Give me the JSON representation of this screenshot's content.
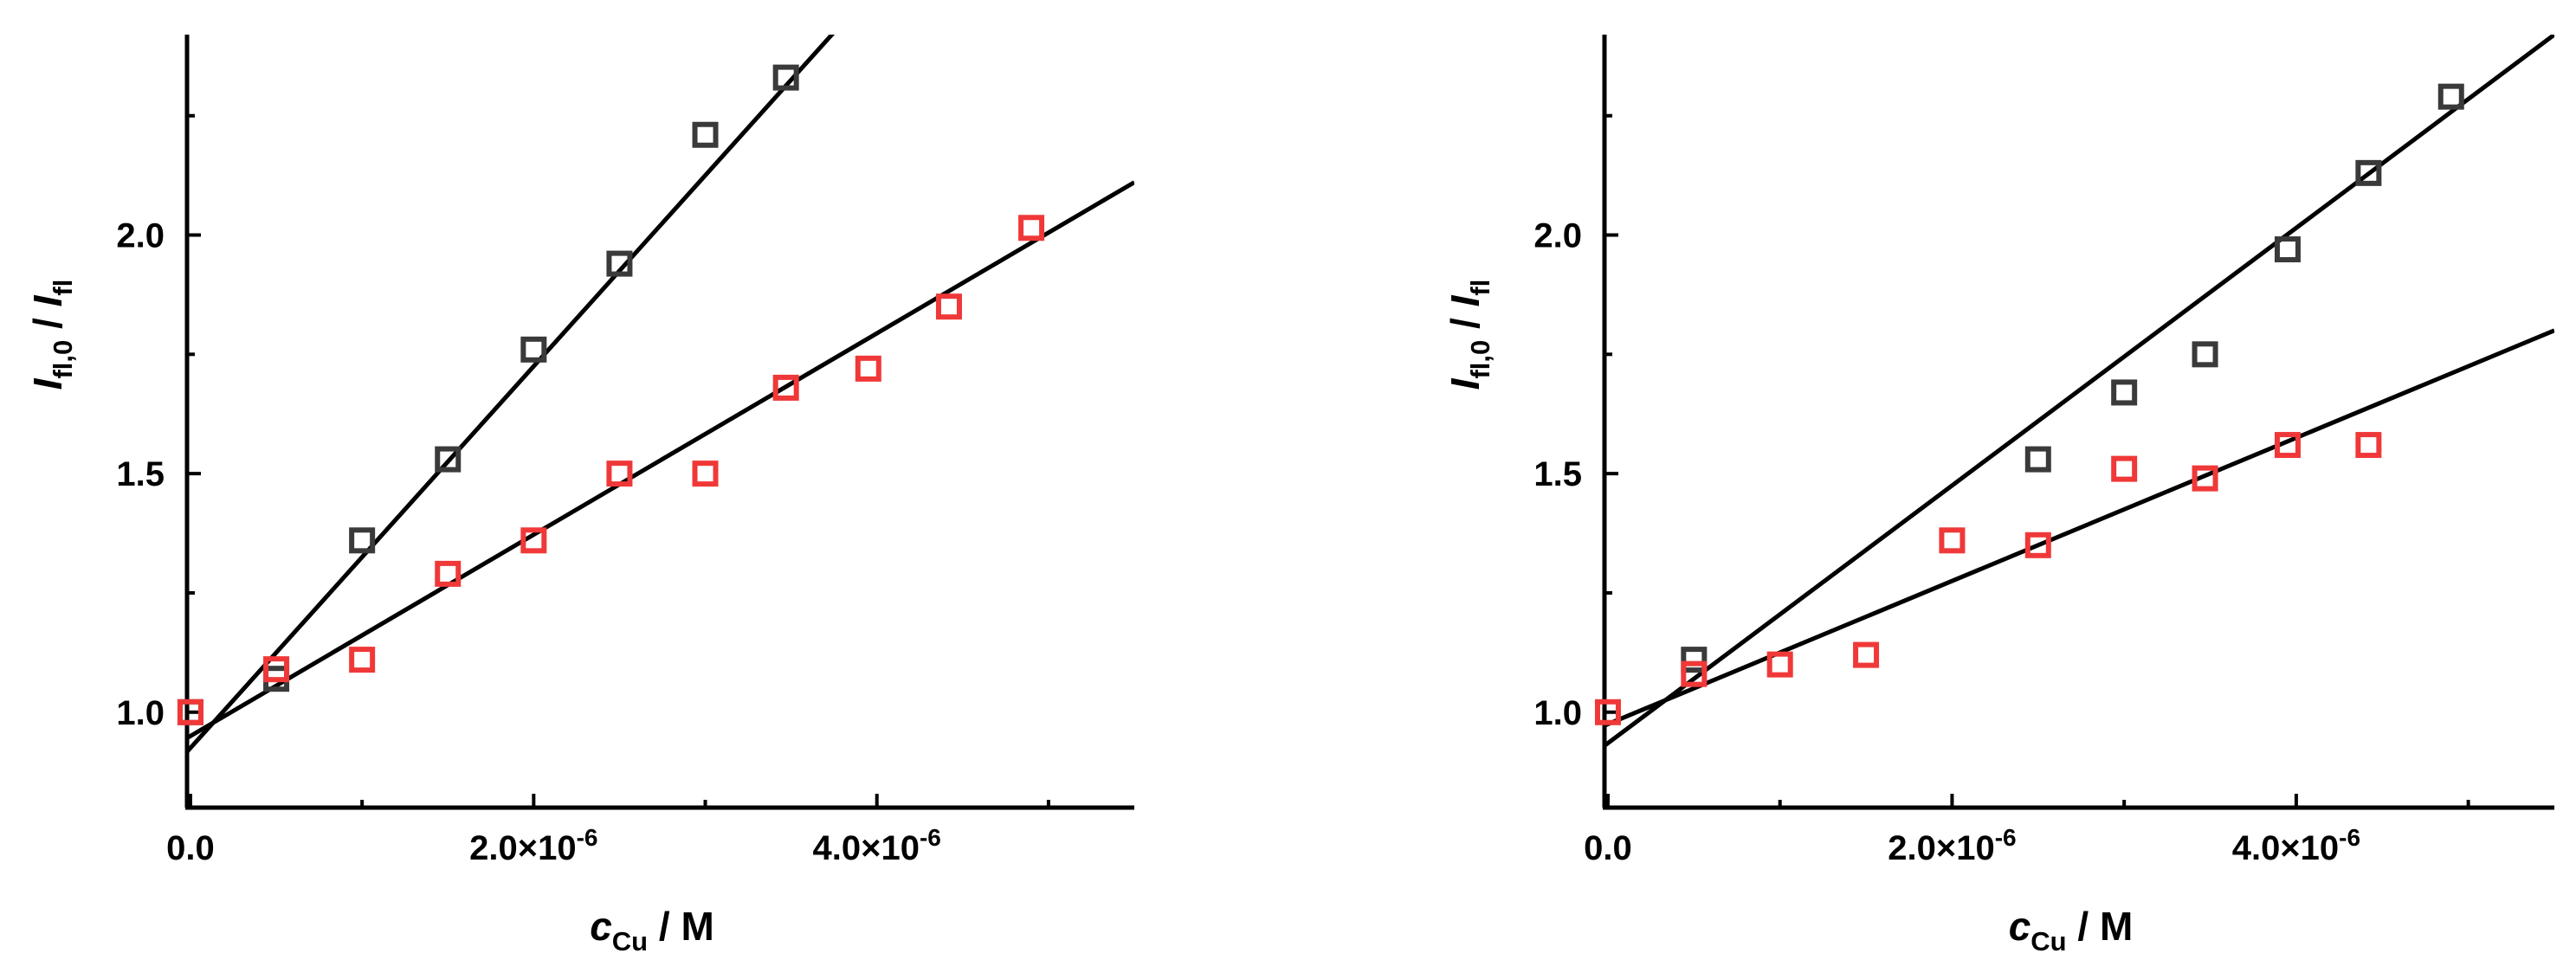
{
  "colors": {
    "black_series": "#3a3a3a",
    "red_series": "#f03838",
    "axis": "#000000",
    "fit": "#000000"
  },
  "chart_data": [
    {
      "type": "scatter",
      "panel": "left",
      "xlabel": {
        "main": "c",
        "sub": "Cu",
        "unit": " / M"
      },
      "ylabel": {
        "main1": "I",
        "sub1": "fl,0",
        "mid": " / ",
        "main2": "I",
        "sub2": "fl"
      },
      "xlim": [
        -2e-08,
        5.5e-06
      ],
      "ylim": [
        0.8,
        2.42
      ],
      "xticks": [
        0,
        2e-06,
        4e-06
      ],
      "xtick_labels": [
        "0.0",
        "2.0×10",
        "4.0×10"
      ],
      "xtick_exp": [
        "",
        "-6",
        "-6"
      ],
      "yticks": [
        1.0,
        1.5,
        2.0
      ],
      "ytick_labels": [
        "1.0",
        "1.5",
        "2.0"
      ],
      "grid": false,
      "series": [
        {
          "color": "#3a3a3a",
          "x": [
            0,
            5e-07,
            1e-06,
            1.5e-06,
            2e-06,
            2.5e-06,
            3e-06,
            3.47e-06
          ],
          "y": [
            1.0,
            1.07,
            1.36,
            1.53,
            1.76,
            1.94,
            2.21,
            2.33
          ],
          "fit": {
            "intercept": 0.925,
            "slope": 400000.0
          }
        },
        {
          "color": "#f03838",
          "x": [
            0,
            5e-07,
            1e-06,
            1.5e-06,
            2e-06,
            2.5e-06,
            3e-06,
            3.47e-06,
            3.95e-06,
            4.42e-06,
            4.9e-06
          ],
          "y": [
            1.0,
            1.09,
            1.11,
            1.29,
            1.36,
            1.5,
            1.5,
            1.68,
            1.72,
            1.85,
            2.015
          ],
          "fit": {
            "intercept": 0.95,
            "slope": 211000.0
          }
        }
      ]
    },
    {
      "type": "scatter",
      "panel": "right",
      "xlabel": {
        "main": "c",
        "sub": "Cu",
        "unit": " / M"
      },
      "ylabel": {
        "main1": "I",
        "sub1": "fl,0",
        "mid": " / ",
        "main2": "I",
        "sub2": "fl"
      },
      "xlim": [
        -2e-08,
        5.5e-06
      ],
      "ylim": [
        0.8,
        2.42
      ],
      "xticks": [
        0,
        2e-06,
        4e-06
      ],
      "xtick_labels": [
        "0.0",
        "2.0×10",
        "4.0×10"
      ],
      "xtick_exp": [
        "",
        "-6",
        "-6"
      ],
      "yticks": [
        1.0,
        1.5,
        2.0
      ],
      "ytick_labels": [
        "1.0",
        "1.5",
        "2.0"
      ],
      "grid": false,
      "series": [
        {
          "color": "#3a3a3a",
          "x": [
            5e-07,
            2.5e-06,
            3e-06,
            3.47e-06,
            3.95e-06,
            4.42e-06,
            4.9e-06
          ],
          "y": [
            1.11,
            1.53,
            1.67,
            1.75,
            1.97,
            2.13,
            2.29
          ],
          "fit": {
            "intercept": 0.935,
            "slope": 270000.0
          }
        },
        {
          "color": "#f03838",
          "x": [
            0,
            5e-07,
            1e-06,
            1.5e-06,
            2e-06,
            2.5e-06,
            3e-06,
            3.47e-06,
            3.95e-06,
            4.42e-06
          ],
          "y": [
            1.0,
            1.08,
            1.1,
            1.12,
            1.36,
            1.35,
            1.51,
            1.49,
            1.56,
            1.56
          ],
          "fit": {
            "intercept": 0.975,
            "slope": 150000.0
          }
        }
      ]
    }
  ]
}
